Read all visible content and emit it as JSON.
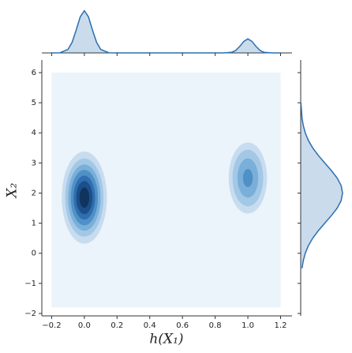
{
  "chart_data": {
    "type": "kde",
    "x_label": "h(X₁)",
    "y_label": "X₂",
    "xlim": [
      -0.26,
      1.27
    ],
    "ylim": [
      -2.08,
      6.42
    ],
    "xticks": [
      {
        "value": -0.2,
        "label": "−0.2"
      },
      {
        "value": 0,
        "label": "0.0"
      },
      0.2,
      0.4,
      0.6,
      0.8,
      {
        "value": 1,
        "label": "1.0"
      },
      1.2
    ],
    "yticks": [
      {
        "value": -2,
        "label": "−2"
      },
      {
        "value": -1,
        "label": "−1"
      },
      0,
      1,
      2,
      3,
      4,
      5,
      6
    ],
    "background": {
      "x0": -0.2,
      "x1": 1.2,
      "y0": -1.8,
      "y1": 6,
      "color": "#ebf3fb"
    },
    "contours": [
      {
        "cx": 0,
        "cy": 1.85,
        "rx": 0.138,
        "ry": 1.53,
        "color": "#c8dcf0"
      },
      {
        "cx": 0,
        "cy": 1.85,
        "rx": 0.117,
        "ry": 1.3,
        "color": "#a3c8e6"
      },
      {
        "cx": 0,
        "cy": 1.85,
        "rx": 0.099,
        "ry": 1.1,
        "color": "#79afd9"
      },
      {
        "cx": 0,
        "cy": 1.85,
        "rx": 0.083,
        "ry": 0.92,
        "color": "#4f90c6"
      },
      {
        "cx": 0,
        "cy": 1.85,
        "rx": 0.066,
        "ry": 0.73,
        "color": "#2f6fb0"
      },
      {
        "cx": 0,
        "cy": 1.85,
        "rx": 0.05,
        "ry": 0.55,
        "color": "#1c4f8a"
      },
      {
        "cx": 0,
        "cy": 1.85,
        "rx": 0.03,
        "ry": 0.34,
        "color": "#10345e"
      },
      {
        "cx": 1,
        "cy": 2.5,
        "rx": 0.117,
        "ry": 1.18,
        "color": "#c8dcf0"
      },
      {
        "cx": 1,
        "cy": 2.5,
        "rx": 0.094,
        "ry": 0.94,
        "color": "#a3c8e6"
      },
      {
        "cx": 1,
        "cy": 2.5,
        "rx": 0.064,
        "ry": 0.65,
        "color": "#79afd9"
      },
      {
        "cx": 1,
        "cy": 2.5,
        "rx": 0.03,
        "ry": 0.3,
        "color": "#4f90c6"
      }
    ],
    "line_color": "#2a6fb0",
    "top_marginal": {
      "ylim": [
        0,
        3.2
      ],
      "x": [
        -0.2,
        -0.15,
        -0.1,
        -0.075,
        -0.05,
        -0.025,
        0,
        0.025,
        0.05,
        0.075,
        0.1,
        0.15,
        0.2,
        0.4,
        0.6,
        0.8,
        0.85,
        0.9,
        0.925,
        0.95,
        0.975,
        1,
        1.025,
        1.05,
        1.075,
        1.1,
        1.15,
        1.2
      ],
      "values": [
        0,
        0.01,
        0.25,
        0.75,
        1.62,
        2.57,
        3,
        2.57,
        1.62,
        0.75,
        0.25,
        0.01,
        0,
        0,
        0,
        0,
        0,
        0.04,
        0.17,
        0.46,
        0.82,
        1,
        0.82,
        0.46,
        0.17,
        0.04,
        0,
        0
      ]
    },
    "right_marginal": {
      "xlim": [
        0,
        1.15
      ],
      "y": [
        -0.5,
        -0.25,
        0,
        0.25,
        0.5,
        0.75,
        1,
        1.25,
        1.5,
        1.75,
        2,
        2.25,
        2.5,
        2.75,
        3,
        3.25,
        3.5,
        3.75,
        4,
        4.25,
        4.5,
        5
      ],
      "values": [
        0.031,
        0.061,
        0.109,
        0.183,
        0.287,
        0.421,
        0.575,
        0.732,
        0.871,
        0.966,
        1,
        0.966,
        0.871,
        0.732,
        0.575,
        0.421,
        0.287,
        0.183,
        0.109,
        0.061,
        0.031,
        0.006
      ]
    }
  }
}
